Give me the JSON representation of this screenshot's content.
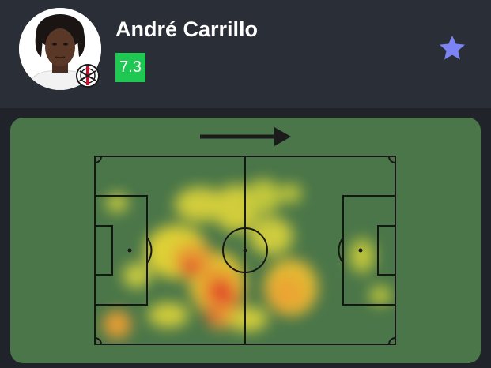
{
  "player": {
    "name": "André Carrillo",
    "rating": "7.3",
    "club": "Corinthians",
    "rating_color": "#1ec853"
  },
  "icons": {
    "favorite": "star-icon",
    "direction": "attack-direction-arrow-icon",
    "club_badge": "corinthians-badge-icon"
  },
  "colors": {
    "header_bg": "#2a2e37",
    "pitch_bg": "#4a7649",
    "star": "#7c83f5"
  },
  "heatmap": {
    "attack_direction": "left-to-right",
    "hot_zones": [
      "central midfield (left half)",
      "left box edge",
      "right of centre circle"
    ]
  }
}
